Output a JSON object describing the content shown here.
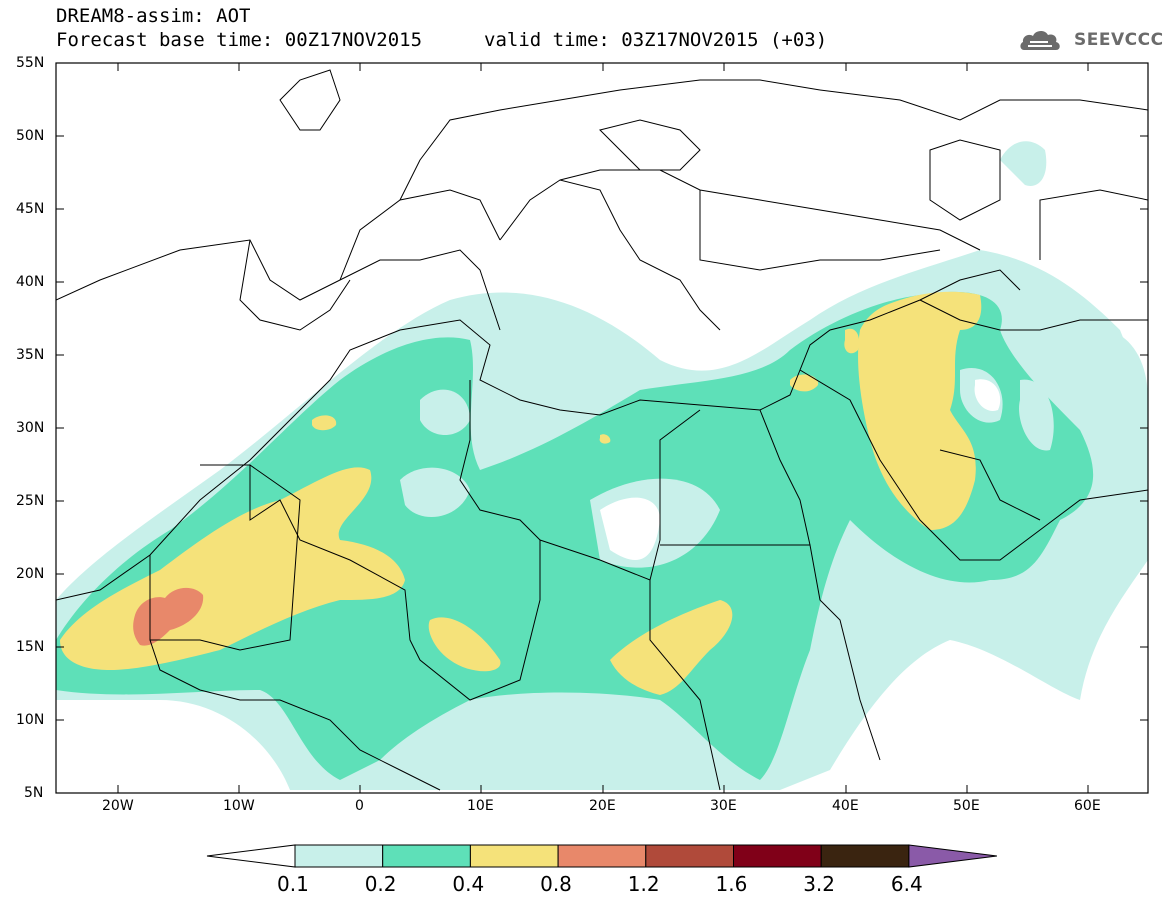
{
  "title": {
    "line1": "DREAM8-assim: AOT",
    "line2": "Forecast base time: 00Z17NOV2015",
    "valid": "valid time: 03Z17NOV2015 (+03)"
  },
  "logo": {
    "text": "SEEVCCC",
    "icon": "cloud-icon"
  },
  "map": {
    "lat_labels": [
      "55N",
      "50N",
      "45N",
      "40N",
      "35N",
      "30N",
      "25N",
      "20N",
      "15N",
      "10N",
      "5N"
    ],
    "lon_labels": [
      "20W",
      "10W",
      "0",
      "10E",
      "20E",
      "30E",
      "40E",
      "50E",
      "60E"
    ],
    "colors": {
      "0.1-0.2": "#c8f0ea",
      "0.2-0.4": "#5ee0b8",
      "0.4-0.8": "#f5e27a",
      "0.8-1.2": "#e8886a",
      "1.2-1.6": "#b04a3a"
    }
  },
  "colorbar": {
    "labels": [
      "0.1",
      "0.2",
      "0.4",
      "0.8",
      "1.2",
      "1.6",
      "3.2",
      "6.4"
    ],
    "colors": [
      "#ffffff",
      "#c8f0ea",
      "#5ee0b8",
      "#f5e27a",
      "#e8886a",
      "#b04a3a",
      "#800018",
      "#3a2410",
      "#8a5aa8"
    ]
  }
}
